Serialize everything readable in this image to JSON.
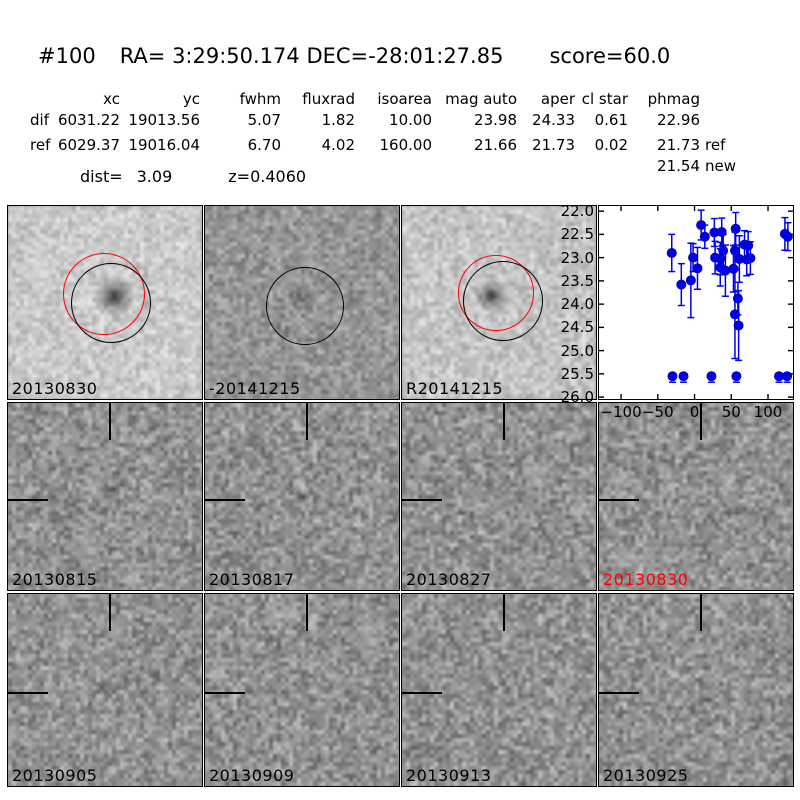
{
  "header": {
    "id": "#100",
    "coords": "RA= 3:29:50.174 DEC=-28:01:27.85",
    "score": "score=60.0"
  },
  "photometry_table": {
    "columns": [
      "xc",
      "yc",
      "fwhm",
      "fluxrad",
      "isoarea",
      "mag auto",
      "aper",
      "cl star",
      "phmag"
    ],
    "rows": [
      {
        "label": "dif",
        "values": [
          "6031.22",
          "19013.56",
          "5.07",
          "1.82",
          "10.00",
          "23.98",
          "24.33",
          "0.61",
          "22.96"
        ],
        "suffix": ""
      },
      {
        "label": "ref",
        "values": [
          "6029.37",
          "19016.04",
          "6.70",
          "4.02",
          "160.00",
          "21.66",
          "21.73",
          "0.02",
          "21.73"
        ],
        "suffix": "ref"
      }
    ],
    "extra_phmag": {
      "value": "21.54",
      "suffix": "new"
    },
    "dist_label": "dist=",
    "dist_value": "3.09",
    "z_label": "z=",
    "z_value": "0.4060"
  },
  "panels": [
    {
      "label": "20130830",
      "label_color": "#000000",
      "kind": "new-image"
    },
    {
      "label": "-20141215",
      "label_color": "#000000",
      "kind": "dif-image"
    },
    {
      "label": "R20141215",
      "label_color": "#000000",
      "kind": "ref-image"
    },
    {
      "label": "20130815",
      "label_color": "#000000",
      "kind": "epoch-image"
    },
    {
      "label": "20130817",
      "label_color": "#000000",
      "kind": "epoch-image"
    },
    {
      "label": "20130827",
      "label_color": "#000000",
      "kind": "epoch-image"
    },
    {
      "label": "20130830",
      "label_color": "#ff0000",
      "kind": "epoch-image"
    },
    {
      "label": "20130905",
      "label_color": "#000000",
      "kind": "epoch-image"
    },
    {
      "label": "20130909",
      "label_color": "#000000",
      "kind": "epoch-image"
    },
    {
      "label": "20130913",
      "label_color": "#000000",
      "kind": "epoch-image"
    },
    {
      "label": "20130925",
      "label_color": "#000000",
      "kind": "epoch-image"
    }
  ],
  "chart_data": {
    "type": "scatter",
    "title": "",
    "xlabel": "",
    "ylabel": "",
    "xlim": [
      -130,
      134
    ],
    "ylim": [
      26.04,
      21.89
    ],
    "y_inverted": true,
    "grid": false,
    "legend": null,
    "xticks": [
      -100,
      -50,
      0,
      50,
      100
    ],
    "xtick_labels": [
      "−100",
      "−50",
      "0",
      "50",
      "100"
    ],
    "yticks": [
      22.0,
      22.5,
      23.0,
      23.5,
      24.0,
      24.5,
      25.0,
      25.5,
      26.0
    ],
    "ytick_labels": [
      "22.0",
      "22.5",
      "23.0",
      "23.5",
      "24.0",
      "24.5",
      "25.0",
      "25.5",
      "26.0"
    ],
    "marker_fill": "#0000ee",
    "marker_edge": "#0000b4",
    "errorbar_color": "#0000f0",
    "points": [
      {
        "x": -31,
        "mag": 22.9,
        "err": 0.4
      },
      {
        "x": -18,
        "mag": 23.58,
        "err": 0.45
      },
      {
        "x": -5,
        "mag": 23.49,
        "err": 0.8
      },
      {
        "x": -2,
        "mag": 23.0,
        "err": 0.3
      },
      {
        "x": 4,
        "mag": 23.23,
        "err": 0.45
      },
      {
        "x": 9,
        "mag": 22.3,
        "err": 0.32
      },
      {
        "x": 14,
        "mag": 22.55,
        "err": 0.25
      },
      {
        "x": 27,
        "mag": 22.46,
        "err": 0.3
      },
      {
        "x": 28,
        "mag": 23.0,
        "err": 0.35
      },
      {
        "x": 35,
        "mag": 23.02,
        "err": 0.35
      },
      {
        "x": 35,
        "mag": 23.21,
        "err": 0.4
      },
      {
        "x": 37,
        "mag": 22.45,
        "err": 0.3
      },
      {
        "x": 39,
        "mag": 22.85,
        "err": 0.35
      },
      {
        "x": 42,
        "mag": 23.28,
        "err": 0.55
      },
      {
        "x": 53,
        "mag": 23.24,
        "err": 0.5
      },
      {
        "x": 56,
        "mag": 22.38,
        "err": 0.35
      },
      {
        "x": 55,
        "mag": 22.85,
        "err": 0.4
      },
      {
        "x": 61,
        "mag": 23.03,
        "err": 0.5
      },
      {
        "x": 68,
        "mag": 22.72,
        "err": 0.3
      },
      {
        "x": 71,
        "mag": 23.04,
        "err": 0.35
      },
      {
        "x": 73,
        "mag": 22.74,
        "err": 0.3
      },
      {
        "x": 76,
        "mag": 23.01,
        "err": 0.35
      },
      {
        "x": 59,
        "mag": 23.88,
        "err": 0.35
      },
      {
        "x": 55,
        "mag": 24.22,
        "err": 0.95
      },
      {
        "x": 60,
        "mag": 24.46,
        "err": 0.75
      },
      {
        "x": 123,
        "mag": 22.49,
        "err": 0.35
      },
      {
        "x": 127,
        "mag": 22.55,
        "err": 0.3
      }
    ],
    "limit_points": [
      {
        "x": -30,
        "mag": 25.55
      },
      {
        "x": -15,
        "mag": 25.55
      },
      {
        "x": 23,
        "mag": 25.55
      },
      {
        "x": 57,
        "mag": 25.55
      },
      {
        "x": 115,
        "mag": 25.55
      },
      {
        "x": 126,
        "mag": 25.55
      }
    ]
  }
}
